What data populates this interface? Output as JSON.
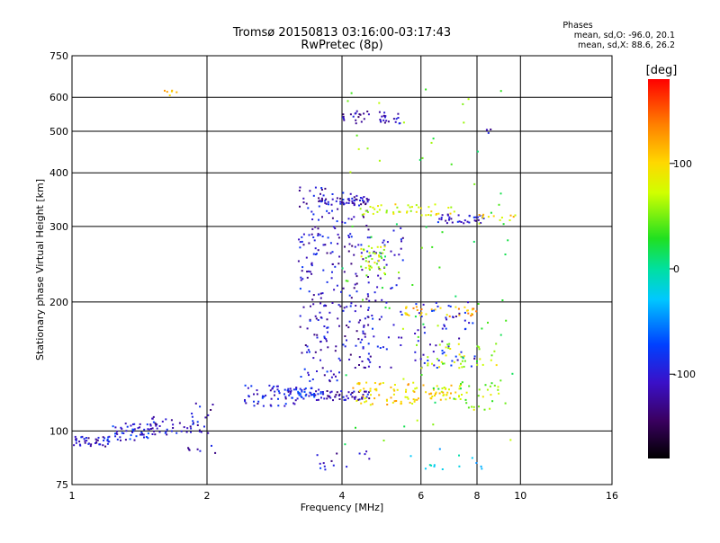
{
  "header": {
    "title_line1": "Tromsø 20150813 03:16:00-03:17:43",
    "title_line2": "RwPretec (8p)",
    "stats_title": "Phases",
    "stats_o": "mean, sd,O: -96.0, 20.1",
    "stats_x": "mean, sd,X:  88.6, 26.2"
  },
  "colorbar": {
    "label": "[deg]",
    "ticks": [
      {
        "label": "100",
        "value": 100
      },
      {
        "label": "0",
        "value": 0
      },
      {
        "label": "-100",
        "value": -100
      }
    ],
    "range": [
      -180,
      180
    ]
  },
  "chart_data": {
    "type": "scatter",
    "xlabel": "Frequency [MHz]",
    "ylabel": "Stationary phase Virtual Height [km]",
    "x_scale": "log",
    "y_scale": "log",
    "xlim": [
      1,
      16
    ],
    "ylim": [
      75,
      750
    ],
    "x_ticks": [
      {
        "label": "1",
        "value": 1
      },
      {
        "label": "2",
        "value": 2
      },
      {
        "label": "4",
        "value": 4
      },
      {
        "label": "6",
        "value": 6
      },
      {
        "label": "8",
        "value": 8
      },
      {
        "label": "10",
        "value": 10
      },
      {
        "label": "16",
        "value": 16
      }
    ],
    "y_ticks": [
      {
        "label": "75",
        "value": 75
      },
      {
        "label": "100",
        "value": 100
      },
      {
        "label": "200",
        "value": 200
      },
      {
        "label": "300",
        "value": 300
      },
      {
        "label": "400",
        "value": 400
      },
      {
        "label": "500",
        "value": 500
      },
      {
        "label": "600",
        "value": 600
      },
      {
        "label": "750",
        "value": 750
      }
    ],
    "grid": true,
    "clusters": [
      {
        "f": [
          1.0,
          1.22
        ],
        "h": [
          92,
          97
        ],
        "phase": -110,
        "n": 40
      },
      {
        "f": [
          1.2,
          1.55
        ],
        "h": [
          95,
          105
        ],
        "phase": -95,
        "n": 55
      },
      {
        "f": [
          1.5,
          1.95
        ],
        "h": [
          98,
          108
        ],
        "phase": -105,
        "n": 35
      },
      {
        "f": [
          1.8,
          2.1
        ],
        "h": [
          88,
          118
        ],
        "phase": -110,
        "n": 20
      },
      {
        "f": [
          2.4,
          3.2
        ],
        "h": [
          113,
          128
        ],
        "phase": -100,
        "n": 55
      },
      {
        "f": [
          3.0,
          3.6
        ],
        "h": [
          118,
          126
        ],
        "phase": -90,
        "n": 45
      },
      {
        "f": [
          3.6,
          4.6
        ],
        "h": [
          118,
          124
        ],
        "phase": -115,
        "n": 50
      },
      {
        "f": [
          4.2,
          5.9
        ],
        "h": [
          115,
          130
        ],
        "phase": 100,
        "n": 60
      },
      {
        "f": [
          5.8,
          7.5
        ],
        "h": [
          118,
          128
        ],
        "phase": 95,
        "n": 45
      },
      {
        "f": [
          7.2,
          9.0
        ],
        "h": [
          112,
          130
        ],
        "phase": 60,
        "n": 25
      },
      {
        "f": [
          3.2,
          4.0
        ],
        "h": [
          130,
          370
        ],
        "phase": -105,
        "n": 180
      },
      {
        "f": [
          4.0,
          4.6
        ],
        "h": [
          140,
          360
        ],
        "phase": -110,
        "n": 90
      },
      {
        "f": [
          4.4,
          5.5
        ],
        "h": [
          140,
          300
        ],
        "phase": -105,
        "n": 70
      },
      {
        "f": [
          4.4,
          5.0
        ],
        "h": [
          230,
          270
        ],
        "phase": 70,
        "n": 35
      },
      {
        "f": [
          5.5,
          8.0
        ],
        "h": [
          185,
          195
        ],
        "phase": 115,
        "n": 35
      },
      {
        "f": [
          5.8,
          8.0
        ],
        "h": [
          140,
          200
        ],
        "phase": -100,
        "n": 60
      },
      {
        "f": [
          6.0,
          9.0
        ],
        "h": [
          140,
          160
        ],
        "phase": 70,
        "n": 35
      },
      {
        "f": [
          3.6,
          4.6
        ],
        "h": [
          335,
          350
        ],
        "phase": -110,
        "n": 40
      },
      {
        "f": [
          4.4,
          7.5
        ],
        "h": [
          318,
          338
        ],
        "phase": 80,
        "n": 45
      },
      {
        "f": [
          6.5,
          8.5
        ],
        "h": [
          305,
          320
        ],
        "phase": -100,
        "n": 35
      },
      {
        "f": [
          8.0,
          9.8
        ],
        "h": [
          310,
          320
        ],
        "phase": 95,
        "n": 12
      },
      {
        "f": [
          4.0,
          4.6
        ],
        "h": [
          520,
          560
        ],
        "phase": -110,
        "n": 20
      },
      {
        "f": [
          4.8,
          5.4
        ],
        "h": [
          520,
          560
        ],
        "phase": -105,
        "n": 20
      },
      {
        "f": [
          3.5,
          4.8
        ],
        "h": [
          80,
          90
        ],
        "phase": -105,
        "n": 14
      },
      {
        "f": [
          5.6,
          8.8
        ],
        "h": [
          80,
          92
        ],
        "phase": -20,
        "n": 14
      },
      {
        "f": [
          1.55,
          1.75
        ],
        "h": [
          605,
          625
        ],
        "phase": 100,
        "n": 6
      },
      {
        "f": [
          8.1,
          8.6
        ],
        "h": [
          495,
          505
        ],
        "phase": -110,
        "n": 4
      },
      {
        "f": [
          4.0,
          9.8
        ],
        "h": [
          90,
          640
        ],
        "phase": 40,
        "n": 90
      }
    ]
  }
}
